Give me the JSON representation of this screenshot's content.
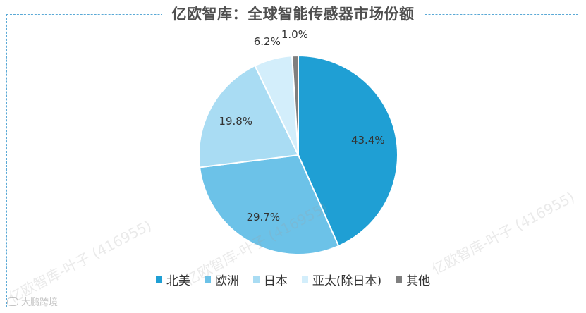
{
  "title": "亿欧智库：全球智能传感器市场份额",
  "chart_data": {
    "type": "pie",
    "categories": [
      "北美",
      "欧洲",
      "日本",
      "亚太(除日本)",
      "其他"
    ],
    "values": [
      43.4,
      29.7,
      19.8,
      6.2,
      1.0
    ],
    "labels": [
      "43.4%",
      "29.7%",
      "19.8%",
      "6.2%",
      "1.0%"
    ],
    "colors": [
      "#1f9fd4",
      "#6cc2e8",
      "#a9dcf3",
      "#d3eefb",
      "#7f7f7f"
    ],
    "label_colors": [
      "#333333",
      "#333333",
      "#333333",
      "#333333",
      "#333333"
    ],
    "legend_position": "bottom",
    "start_angle_deg": 0,
    "direction": "clockwise"
  },
  "watermark": "亿欧智库-叶子 (416955)",
  "brand": "大鹏跨境"
}
